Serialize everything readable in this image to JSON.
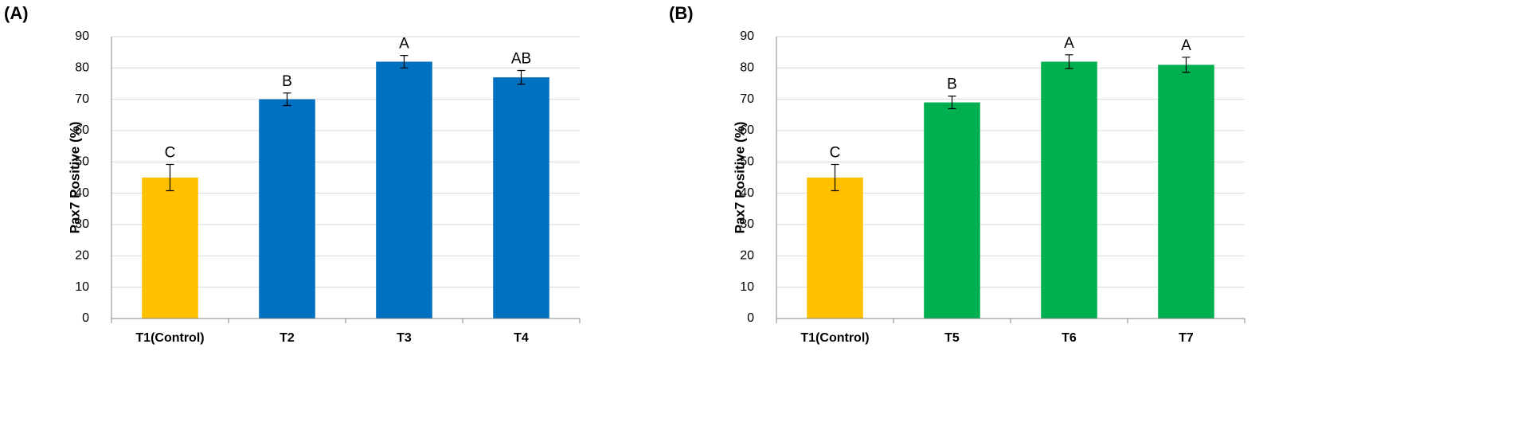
{
  "chart_data": [
    {
      "type": "bar",
      "panel": "(A)",
      "y_label": "Pax7 Positive (%)",
      "categories": [
        "T1(Control)",
        "T2",
        "T3",
        "T4"
      ],
      "values": [
        45,
        70,
        82,
        77
      ],
      "errors": [
        4.2,
        2,
        2,
        2.2
      ],
      "annotations": [
        "C",
        "B",
        "A",
        "AB"
      ],
      "colors": [
        "#FFC000",
        "#0070C0",
        "#0070C0",
        "#0070C0"
      ],
      "ylim": [
        0,
        90
      ],
      "yticks": [
        0,
        10,
        20,
        30,
        40,
        50,
        60,
        70,
        80,
        90
      ],
      "grid": true
    },
    {
      "type": "bar",
      "panel": "(B)",
      "y_label": "Pax7 Positive (%)",
      "categories": [
        "T1(Control)",
        "T5",
        "T6",
        "T7"
      ],
      "values": [
        45,
        69,
        82,
        81
      ],
      "errors": [
        4.2,
        2,
        2.2,
        2.4
      ],
      "annotations": [
        "C",
        "B",
        "A",
        "A"
      ],
      "colors": [
        "#FFC000",
        "#00B050",
        "#00B050",
        "#00B050"
      ],
      "ylim": [
        0,
        90
      ],
      "yticks": [
        0,
        10,
        20,
        30,
        40,
        50,
        60,
        70,
        80,
        90
      ],
      "grid": true
    }
  ]
}
